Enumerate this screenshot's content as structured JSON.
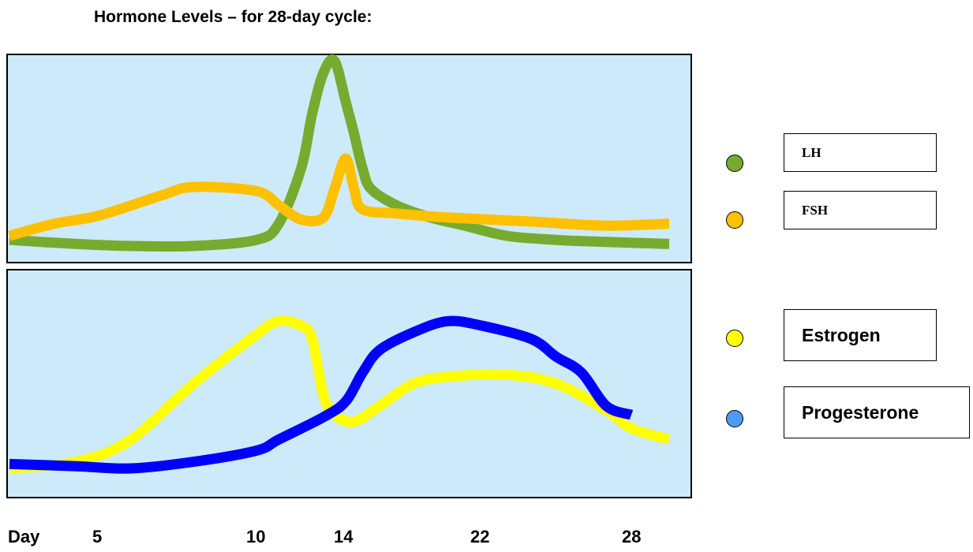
{
  "chart_data": {
    "type": "line",
    "title": "Hormone Levels – for 28-day cycle:",
    "x_axis_label": "Day",
    "x_ticks": [
      "5",
      "10",
      "14",
      "22",
      "28"
    ],
    "grid": false,
    "legend_position": "right",
    "panels": [
      {
        "name": "top",
        "series": [
          {
            "name": "LH",
            "color": "#77ab2f",
            "points": [
              [
                1,
                0.1
              ],
              [
                4,
                0.08
              ],
              [
                6,
                0.07
              ],
              [
                8,
                0.07
              ],
              [
                10,
                0.1
              ],
              [
                11,
                0.18
              ],
              [
                12,
                0.45
              ],
              [
                12.5,
                0.72
              ],
              [
                13,
                0.92
              ],
              [
                13.5,
                0.98
              ],
              [
                14,
                0.78
              ],
              [
                14.5,
                0.62
              ],
              [
                15,
                0.45
              ],
              [
                15.5,
                0.35
              ],
              [
                17,
                0.27
              ],
              [
                19,
                0.21
              ],
              [
                21,
                0.17
              ],
              [
                23,
                0.12
              ],
              [
                25,
                0.1
              ],
              [
                27,
                0.09
              ],
              [
                29,
                0.08
              ]
            ]
          },
          {
            "name": "FSH",
            "color": "#ffc000",
            "points": [
              [
                1,
                0.12
              ],
              [
                3,
                0.18
              ],
              [
                5,
                0.22
              ],
              [
                7,
                0.32
              ],
              [
                8,
                0.36
              ],
              [
                10,
                0.34
              ],
              [
                11,
                0.27
              ],
              [
                12,
                0.2
              ],
              [
                13,
                0.21
              ],
              [
                13.5,
                0.35
              ],
              [
                14,
                0.5
              ],
              [
                14.5,
                0.35
              ],
              [
                15,
                0.25
              ],
              [
                17,
                0.23
              ],
              [
                20,
                0.21
              ],
              [
                24,
                0.19
              ],
              [
                27,
                0.17
              ],
              [
                29,
                0.18
              ]
            ]
          }
        ]
      },
      {
        "name": "bottom",
        "series": [
          {
            "name": "Estrogen",
            "color": "#ffff00",
            "points": [
              [
                1,
                0.12
              ],
              [
                4,
                0.15
              ],
              [
                6,
                0.25
              ],
              [
                8,
                0.5
              ],
              [
                10,
                0.72
              ],
              [
                11,
                0.78
              ],
              [
                12,
                0.76
              ],
              [
                12.5,
                0.7
              ],
              [
                13,
                0.45
              ],
              [
                13.5,
                0.36
              ],
              [
                14.5,
                0.33
              ],
              [
                16,
                0.4
              ],
              [
                18,
                0.5
              ],
              [
                20,
                0.53
              ],
              [
                23,
                0.54
              ],
              [
                25,
                0.5
              ],
              [
                27,
                0.38
              ],
              [
                28,
                0.3
              ],
              [
                29,
                0.25
              ]
            ]
          },
          {
            "name": "Progesterone",
            "color": "#0000ff",
            "points": [
              [
                1,
                0.14
              ],
              [
                4,
                0.13
              ],
              [
                6,
                0.12
              ],
              [
                8,
                0.15
              ],
              [
                10,
                0.2
              ],
              [
                11,
                0.25
              ],
              [
                13,
                0.35
              ],
              [
                14,
                0.42
              ],
              [
                15,
                0.55
              ],
              [
                16,
                0.65
              ],
              [
                18,
                0.73
              ],
              [
                20,
                0.78
              ],
              [
                22,
                0.76
              ],
              [
                24,
                0.7
              ],
              [
                25,
                0.62
              ],
              [
                26,
                0.55
              ],
              [
                27,
                0.4
              ],
              [
                28,
                0.36
              ]
            ]
          }
        ]
      }
    ]
  }
}
